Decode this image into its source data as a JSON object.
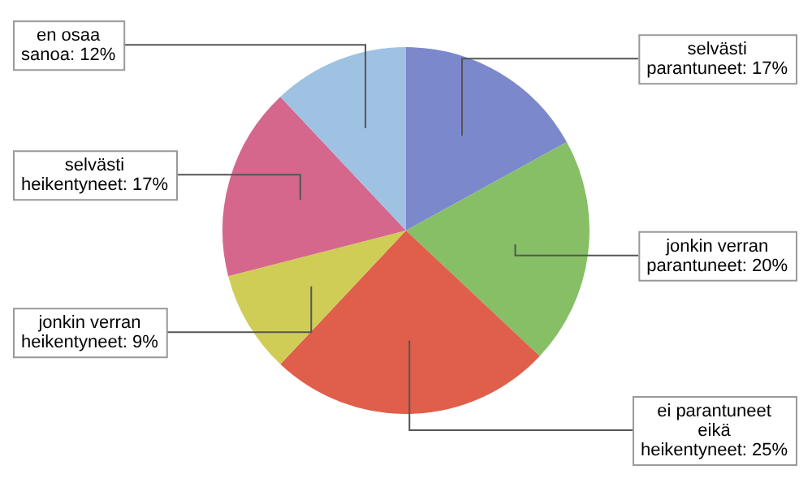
{
  "chart_data": {
    "type": "pie",
    "categories": [
      "selvästi parantuneet",
      "jonkin verran parantuneet",
      "ei parantuneet eikä heikentyneet",
      "jonkin verran heikentyneet",
      "selvästi heikentyneet",
      "en osaa sanoa"
    ],
    "values": [
      17,
      20,
      25,
      9,
      17,
      12
    ],
    "value_labels": [
      "17%",
      "20%",
      "25%",
      "9%",
      "17%",
      "12%"
    ],
    "colors": [
      "#7b89cc",
      "#86bf66",
      "#df5f4b",
      "#cfcd56",
      "#d5678d",
      "#9fc2e3"
    ],
    "legend": false
  }
}
